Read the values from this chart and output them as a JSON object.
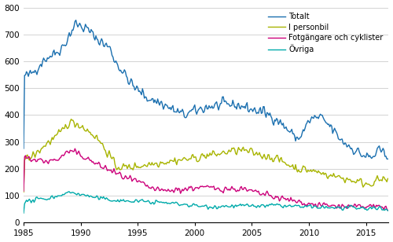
{
  "title": "",
  "xlim": [
    1985.0,
    2016.99
  ],
  "ylim": [
    0,
    800
  ],
  "yticks": [
    0,
    100,
    200,
    300,
    400,
    500,
    600,
    700,
    800
  ],
  "xticks": [
    1985,
    1990,
    1995,
    2000,
    2005,
    2010,
    2015
  ],
  "colors": {
    "Totalt": "#1a6faf",
    "I personbil": "#a8b400",
    "Fotgangare": "#cc007a",
    "Ovriga": "#00aaaa"
  },
  "legend_labels": [
    "Totalt",
    "I personbil",
    "Fotgängare och cyklister",
    "Övriga"
  ],
  "linewidth": 1.0,
  "grid_color": "#cccccc",
  "background_color": "#ffffff"
}
